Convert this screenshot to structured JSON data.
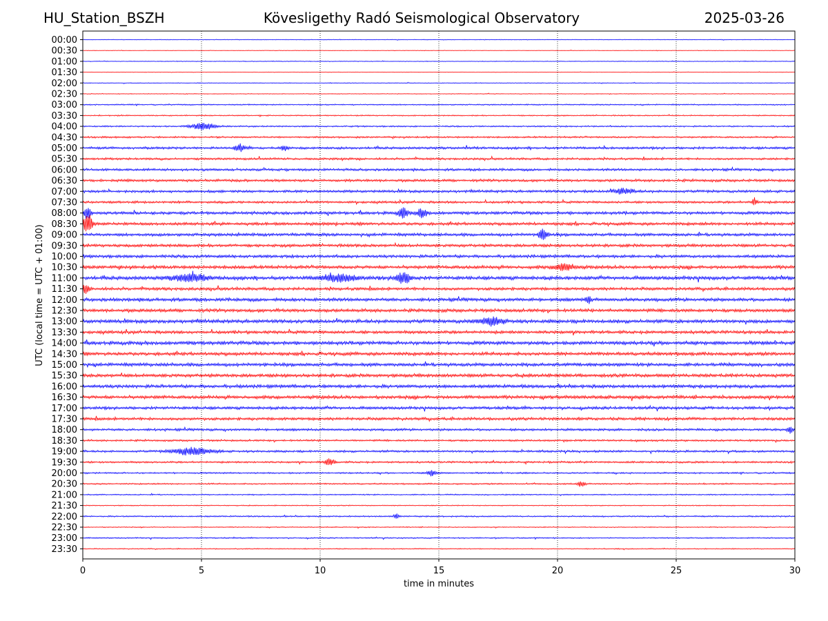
{
  "header": {
    "station": "HU_Station_BSZH",
    "observatory": "Kövesligethy Radó Seismological Observatory",
    "date": "2025-03-26"
  },
  "chart_data": {
    "type": "line",
    "title": "Kövesligethy Radó Seismological Observatory",
    "xlabel": "time in minutes",
    "ylabel": "UTC (local time = UTC + 01:00)",
    "xlim": [
      0,
      30
    ],
    "x_ticks": [
      0,
      5,
      10,
      15,
      20,
      25,
      30
    ],
    "vertical_gridlines": [
      5,
      10,
      15,
      20,
      25
    ],
    "grid": "vertical dotted",
    "colors": {
      "even": "#0000ff",
      "odd": "#ff0000"
    },
    "rows": [
      "00:00",
      "00:30",
      "01:00",
      "01:30",
      "02:00",
      "02:30",
      "03:00",
      "03:30",
      "04:00",
      "04:30",
      "05:00",
      "05:30",
      "06:00",
      "06:30",
      "07:00",
      "07:30",
      "08:00",
      "08:30",
      "09:00",
      "09:30",
      "10:00",
      "10:30",
      "11:00",
      "11:30",
      "12:00",
      "12:30",
      "13:00",
      "13:30",
      "14:00",
      "14:30",
      "15:00",
      "15:30",
      "16:00",
      "16:30",
      "17:00",
      "17:30",
      "18:00",
      "18:30",
      "19:00",
      "19:30",
      "20:00",
      "20:30",
      "21:00",
      "21:30",
      "22:00",
      "22:30",
      "23:00",
      "23:30"
    ],
    "noise_level": [
      0.5,
      0.4,
      0.6,
      0.4,
      0.6,
      0.6,
      1.0,
      1.0,
      1.2,
      1.5,
      2.0,
      1.8,
      2.0,
      2.2,
      2.2,
      2.0,
      2.5,
      2.5,
      2.5,
      2.5,
      2.5,
      2.8,
      3.0,
      2.5,
      2.8,
      2.8,
      3.0,
      2.6,
      3.0,
      2.8,
      2.8,
      2.8,
      2.8,
      2.8,
      2.4,
      2.4,
      2.0,
      1.6,
      1.8,
      1.6,
      1.3,
      1.2,
      1.0,
      0.8,
      1.2,
      0.8,
      1.0,
      0.8
    ],
    "events": [
      {
        "row": "04:00",
        "minute": 5.1,
        "amplitude": 5,
        "width": 0.5
      },
      {
        "row": "05:00",
        "minute": 6.6,
        "amplitude": 5,
        "width": 0.2
      },
      {
        "row": "05:00",
        "minute": 8.5,
        "amplitude": 4,
        "width": 0.15
      },
      {
        "row": "07:00",
        "minute": 22.8,
        "amplitude": 4,
        "width": 0.4
      },
      {
        "row": "07:30",
        "minute": 28.3,
        "amplitude": 6,
        "width": 0.1
      },
      {
        "row": "08:00",
        "minute": 0.2,
        "amplitude": 10,
        "width": 0.15
      },
      {
        "row": "08:00",
        "minute": 13.5,
        "amplitude": 7,
        "width": 0.2
      },
      {
        "row": "08:00",
        "minute": 14.3,
        "amplitude": 6,
        "width": 0.2
      },
      {
        "row": "08:30",
        "minute": 0.2,
        "amplitude": 14,
        "width": 0.2
      },
      {
        "row": "09:00",
        "minute": 19.4,
        "amplitude": 10,
        "width": 0.15
      },
      {
        "row": "10:30",
        "minute": 20.3,
        "amplitude": 5,
        "width": 0.4
      },
      {
        "row": "11:00",
        "minute": 4.5,
        "amplitude": 5,
        "width": 0.7
      },
      {
        "row": "11:00",
        "minute": 13.5,
        "amplitude": 8,
        "width": 0.3
      },
      {
        "row": "11:00",
        "minute": 10.8,
        "amplitude": 5,
        "width": 0.7
      },
      {
        "row": "11:30",
        "minute": 0.1,
        "amplitude": 5,
        "width": 0.2
      },
      {
        "row": "12:00",
        "minute": 21.3,
        "amplitude": 6,
        "width": 0.1
      },
      {
        "row": "13:00",
        "minute": 17.2,
        "amplitude": 5,
        "width": 0.5
      },
      {
        "row": "18:00",
        "minute": 29.8,
        "amplitude": 6,
        "width": 0.1
      },
      {
        "row": "19:00",
        "minute": 4.6,
        "amplitude": 5,
        "width": 0.8
      },
      {
        "row": "19:30",
        "minute": 10.4,
        "amplitude": 5,
        "width": 0.2
      },
      {
        "row": "20:00",
        "minute": 14.7,
        "amplitude": 4,
        "width": 0.2
      },
      {
        "row": "20:30",
        "minute": 21.0,
        "amplitude": 4,
        "width": 0.15
      },
      {
        "row": "22:00",
        "minute": 13.2,
        "amplitude": 4,
        "width": 0.1
      }
    ]
  }
}
